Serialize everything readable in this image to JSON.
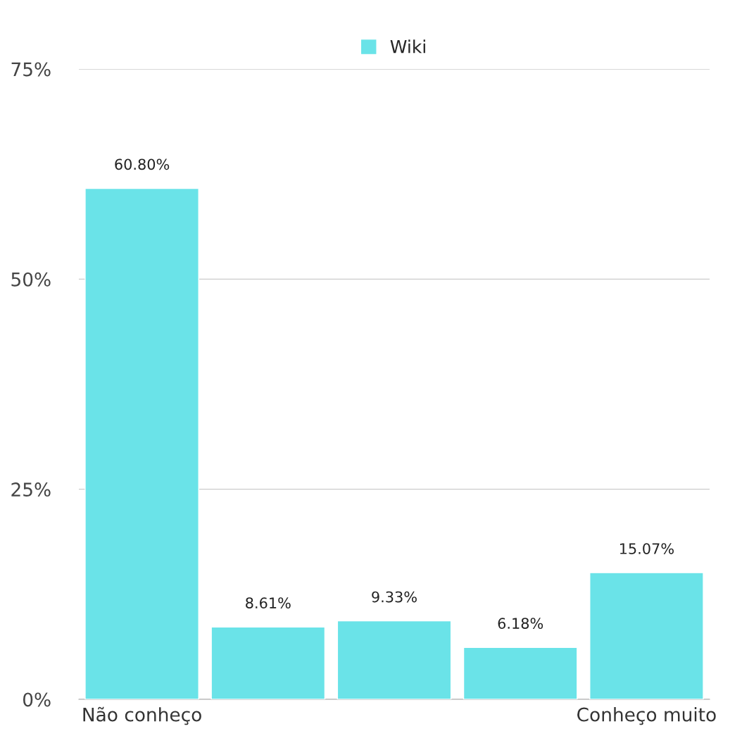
{
  "chart_data": {
    "type": "bar",
    "categories": [
      "Não conheço",
      null,
      null,
      null,
      "Conheço muito"
    ],
    "series": [
      {
        "name": "Wiki",
        "color": "#6ae3e8",
        "values": [
          60.8,
          8.61,
          9.33,
          6.18,
          15.07
        ],
        "value_labels": [
          "60.80%",
          "8.61%",
          "9.33%",
          "6.18%",
          "15.07%"
        ]
      }
    ],
    "ylim": [
      0,
      75
    ],
    "yticks": [
      {
        "value": 0,
        "label": "0%"
      },
      {
        "value": 25,
        "label": "25%"
      },
      {
        "value": 50,
        "label": "50%"
      },
      {
        "value": 75,
        "label": "75%"
      }
    ],
    "grid": "y",
    "legend": "top"
  }
}
